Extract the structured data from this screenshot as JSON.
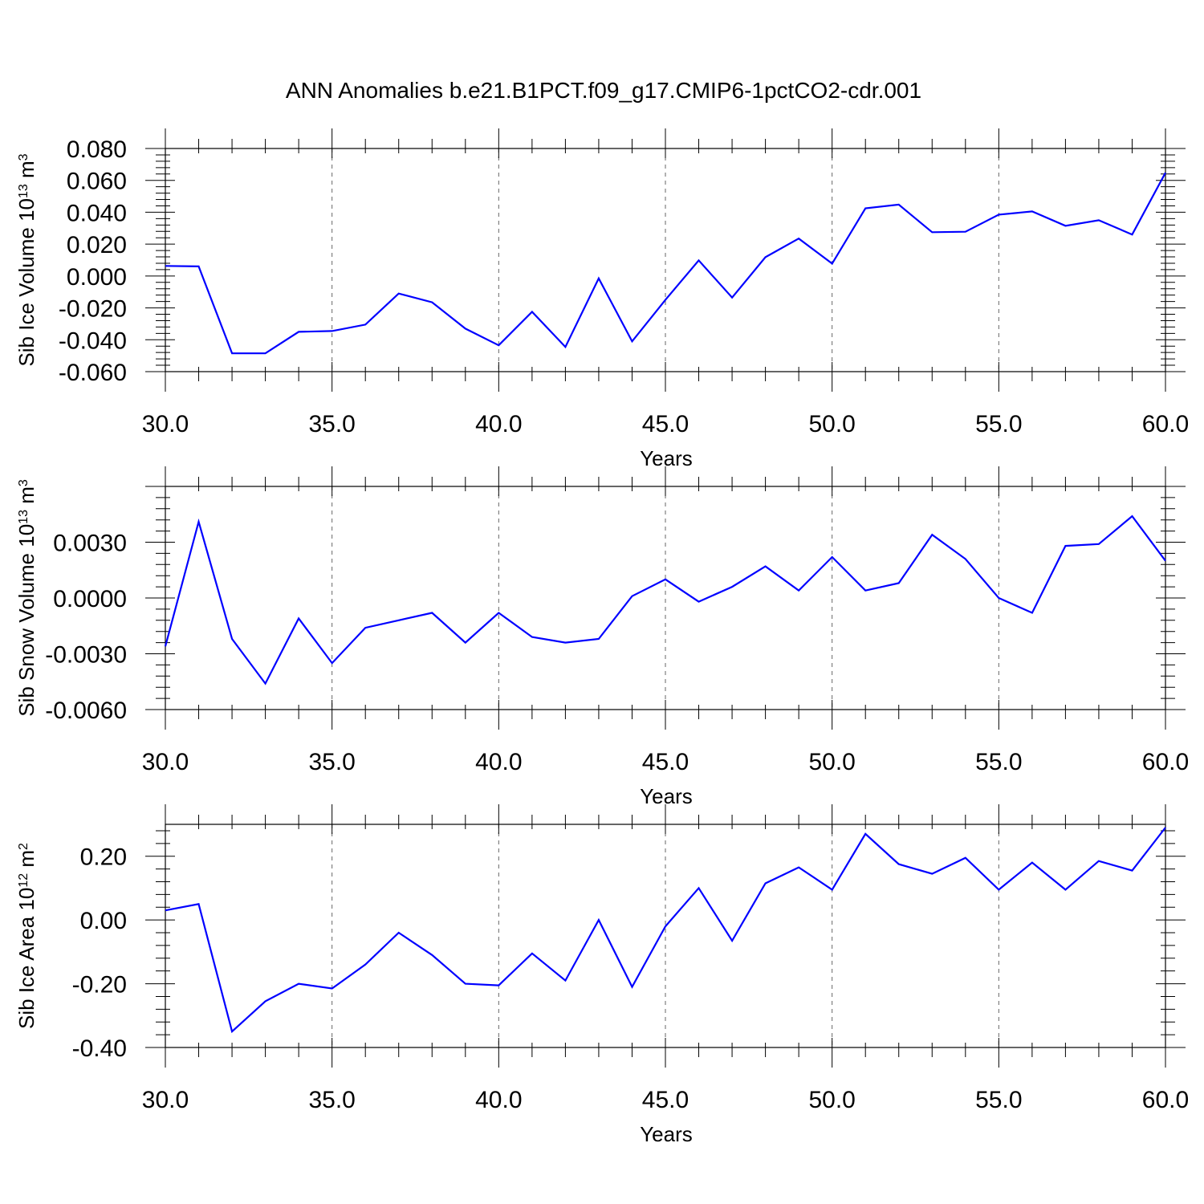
{
  "title": "ANN Anomalies b.e21.B1PCT.f09_g17.CMIP6-1pctCO2-cdr.001",
  "chart_data": [
    {
      "type": "line",
      "title": "",
      "xlabel": "Years",
      "ylabel": {
        "main": "Sib Ice Volume 10",
        "exp": "13",
        "unit": " m",
        "unit_exp": "3"
      },
      "xlim": [
        30,
        60
      ],
      "ylim": [
        -0.06,
        0.08
      ],
      "grid": "vertical dashed at major x ticks",
      "x_ticks": [
        30,
        35,
        40,
        45,
        50,
        55,
        60
      ],
      "x_tick_labels": [
        "30.0",
        "35.0",
        "40.0",
        "45.0",
        "50.0",
        "55.0",
        "60.0"
      ],
      "y_ticks": [
        -0.06,
        -0.04,
        -0.02,
        0.0,
        0.02,
        0.04,
        0.06,
        0.08
      ],
      "y_tick_labels": [
        "-0.060",
        "-0.040",
        "-0.020",
        "0.000",
        "0.020",
        "0.040",
        "0.060",
        "0.080"
      ],
      "x": [
        30,
        31,
        32,
        33,
        34,
        35,
        36,
        37,
        38,
        39,
        40,
        41,
        42,
        43,
        44,
        45,
        46,
        47,
        48,
        49,
        50,
        51,
        52,
        53,
        54,
        55,
        56,
        57,
        58,
        59,
        60
      ],
      "series": [
        {
          "color": "#0000ff",
          "values": [
            0.0063,
            0.006,
            -0.0485,
            -0.0485,
            -0.035,
            -0.0345,
            -0.0305,
            -0.011,
            -0.0165,
            -0.033,
            -0.0435,
            -0.0225,
            -0.0445,
            -0.0015,
            -0.041,
            -0.015,
            0.0098,
            -0.0135,
            0.0118,
            0.0235,
            0.0078,
            0.0425,
            0.0448,
            0.0275,
            0.0278,
            0.0385,
            0.0405,
            0.0315,
            0.035,
            0.026,
            0.0648
          ]
        }
      ]
    },
    {
      "type": "line",
      "title": "",
      "xlabel": "Years",
      "ylabel": {
        "main": "Sib Snow Volume 10",
        "exp": "13",
        "unit": " m",
        "unit_exp": "3"
      },
      "xlim": [
        30,
        60
      ],
      "ylim": [
        -0.006,
        0.006
      ],
      "grid": "vertical dashed at major x ticks",
      "x_ticks": [
        30,
        35,
        40,
        45,
        50,
        55,
        60
      ],
      "x_tick_labels": [
        "30.0",
        "35.0",
        "40.0",
        "45.0",
        "50.0",
        "55.0",
        "60.0"
      ],
      "y_ticks": [
        -0.006,
        -0.003,
        0.0,
        0.003
      ],
      "y_tick_labels": [
        "-0.0060",
        "-0.0030",
        "0.0000",
        "0.0030"
      ],
      "x": [
        30,
        31,
        32,
        33,
        34,
        35,
        36,
        37,
        38,
        39,
        40,
        41,
        42,
        43,
        44,
        45,
        46,
        47,
        48,
        49,
        50,
        51,
        52,
        53,
        54,
        55,
        56,
        57,
        58,
        59,
        60
      ],
      "series": [
        {
          "color": "#0000ff",
          "values": [
            -0.0026,
            0.0041,
            -0.0022,
            -0.0046,
            -0.0011,
            -0.0035,
            -0.0016,
            -0.0012,
            -0.0008,
            -0.0024,
            -0.0008,
            -0.0021,
            -0.0024,
            -0.0022,
            0.0001,
            0.001,
            -0.0002,
            0.0006,
            0.0017,
            0.0004,
            0.0022,
            0.0004,
            0.0008,
            0.0034,
            0.0021,
            0.0,
            -0.0008,
            0.0028,
            0.0029,
            0.0044,
            0.002
          ]
        }
      ]
    },
    {
      "type": "line",
      "title": "",
      "xlabel": "Years",
      "ylabel": {
        "main": "Sib Ice Area 10",
        "exp": "12",
        "unit": " m",
        "unit_exp": "2"
      },
      "xlim": [
        30,
        60
      ],
      "ylim": [
        -0.4,
        0.3
      ],
      "grid": "vertical dashed at major x ticks",
      "x_ticks": [
        30,
        35,
        40,
        45,
        50,
        55,
        60
      ],
      "x_tick_labels": [
        "30.0",
        "35.0",
        "40.0",
        "45.0",
        "50.0",
        "55.0",
        "60.0"
      ],
      "y_ticks": [
        -0.4,
        -0.2,
        0.0,
        0.2
      ],
      "y_tick_labels": [
        "-0.40",
        "-0.20",
        "0.00",
        "0.20"
      ],
      "x": [
        30,
        31,
        32,
        33,
        34,
        35,
        36,
        37,
        38,
        39,
        40,
        41,
        42,
        43,
        44,
        45,
        46,
        47,
        48,
        49,
        50,
        51,
        52,
        53,
        54,
        55,
        56,
        57,
        58,
        59,
        60
      ],
      "series": [
        {
          "color": "#0000ff",
          "values": [
            0.03,
            0.05,
            -0.35,
            -0.255,
            -0.2,
            -0.215,
            -0.14,
            -0.04,
            -0.11,
            -0.2,
            -0.205,
            -0.105,
            -0.19,
            0.0,
            -0.21,
            -0.02,
            0.1,
            -0.065,
            0.115,
            0.165,
            0.095,
            0.27,
            0.175,
            0.145,
            0.195,
            0.095,
            0.18,
            0.095,
            0.185,
            0.155,
            0.29
          ]
        }
      ]
    }
  ]
}
